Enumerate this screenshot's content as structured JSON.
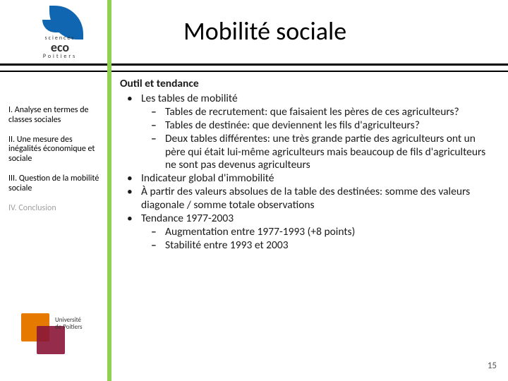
{
  "title": "Mobilité sociale",
  "accent_color": "#92d050",
  "logo_top": {
    "line1": "sciences",
    "line2": "eco",
    "line3": "Poitiers"
  },
  "logo_bottom": {
    "line1": "Université",
    "line2": "de Poitiers"
  },
  "sidebar": {
    "items": [
      {
        "label": "I. Analyse en termes de classes sociales",
        "style": "active"
      },
      {
        "label": "II. Une mesure des inégalités économique et sociale",
        "style": "active"
      },
      {
        "label": "III. Question de la mobilité sociale",
        "style": "active"
      },
      {
        "label": "IV. Conclusion",
        "style": "faded"
      }
    ]
  },
  "content": {
    "heading": "Outil et tendance",
    "items": [
      {
        "level": 1,
        "bullet": "•",
        "text": "Les tables de mobilité"
      },
      {
        "level": 2,
        "bullet": "–",
        "text": "Tables de recrutement: que faisaient les pères de ces agriculteurs?"
      },
      {
        "level": 2,
        "bullet": "–",
        "text": "Tables de destinée: que deviennent les fils d'agriculteurs?"
      },
      {
        "level": 2,
        "bullet": "–",
        "text": "Deux tables différentes: une très grande partie des agriculteurs ont un père qui était lui-même agriculteurs mais beaucoup de fils d'agriculteurs ne sont pas devenus agriculteurs"
      },
      {
        "level": 1,
        "bullet": "•",
        "text": "Indicateur global d'immobilité"
      },
      {
        "level": 1,
        "bullet": "•",
        "text": "À partir des valeurs absolues de la table des destinées: somme des valeurs diagonale / somme totale observations"
      },
      {
        "level": 1,
        "bullet": "•",
        "text": "Tendance 1977-2003"
      },
      {
        "level": 2,
        "bullet": "–",
        "text": "Augmentation entre 1977-1993 (+8 points)"
      },
      {
        "level": 2,
        "bullet": "–",
        "text": "Stabilité entre 1993 et 2003"
      }
    ]
  },
  "page_number": "15"
}
